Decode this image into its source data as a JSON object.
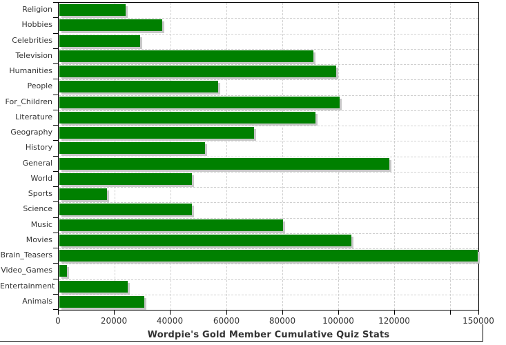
{
  "title": "Wordpie's Gold Member Cumulative Quiz Stats",
  "colors": {
    "bar": "#008000",
    "bar_shadow": "#c8c8c8",
    "gridline": "#cfcfcf",
    "axis": "#000000",
    "text": "#333333",
    "background": "#ffffff"
  },
  "chart_data": {
    "type": "bar",
    "orientation": "horizontal",
    "title": "Wordpie's Gold Member Cumulative Quiz Stats",
    "categories": [
      "Religion",
      "Hobbies",
      "Celebrities",
      "Television",
      "Humanities",
      "People",
      "For_Children",
      "Literature",
      "Geography",
      "History",
      "General",
      "World",
      "Sports",
      "Science",
      "Music",
      "Movies",
      "Brain_Teasers",
      "Video_Games",
      "Entertainment",
      "Animals"
    ],
    "values": [
      24200,
      37300,
      29400,
      91300,
      99400,
      57200,
      100700,
      92000,
      70000,
      52500,
      118400,
      47900,
      17500,
      47900,
      80400,
      104900,
      150000,
      3200,
      24900,
      30800
    ],
    "xlabel": "",
    "ylabel": "",
    "xlim": [
      0,
      150000
    ],
    "grid": true,
    "legend": "none",
    "x_ticks": [
      {
        "value": 0,
        "label": "0"
      },
      {
        "value": 20000,
        "label": "20000"
      },
      {
        "value": 40000,
        "label": "40000"
      },
      {
        "value": 60000,
        "label": "60000"
      },
      {
        "value": 80000,
        "label": "80000"
      },
      {
        "value": 100000,
        "label": "100000"
      },
      {
        "value": 120000,
        "label": "120000"
      },
      {
        "value": 140000,
        "label": ""
      },
      {
        "value": 150000,
        "label": "150000"
      }
    ]
  }
}
